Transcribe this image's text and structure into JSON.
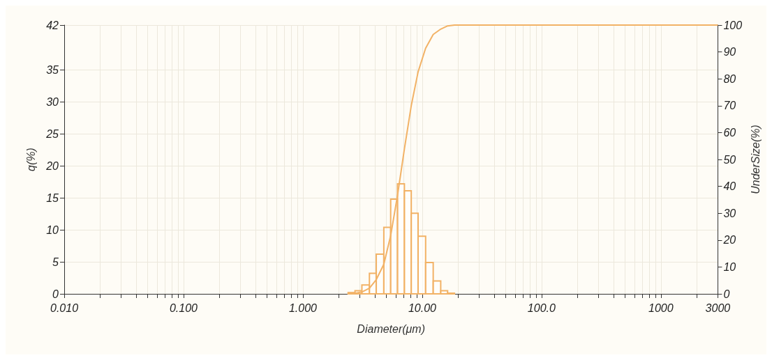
{
  "chart_data": {
    "type": "histogram",
    "xlabel": "Diameter(μm)",
    "ylabel": "q(%)",
    "y2label": "UnderSize(%)",
    "log": "x",
    "grid": true,
    "xlim": [
      0.01,
      3000
    ],
    "xticks": [
      {
        "value": 0.01,
        "label": "0.010"
      },
      {
        "value": 0.02,
        "label": null
      },
      {
        "value": 0.03,
        "label": null
      },
      {
        "value": 0.04,
        "label": null
      },
      {
        "value": 0.05,
        "label": null
      },
      {
        "value": 0.06,
        "label": null
      },
      {
        "value": 0.07,
        "label": null
      },
      {
        "value": 0.08,
        "label": null
      },
      {
        "value": 0.09,
        "label": null
      },
      {
        "value": 0.1,
        "label": "0.100"
      },
      {
        "value": 0.2,
        "label": null
      },
      {
        "value": 0.3,
        "label": null
      },
      {
        "value": 0.4,
        "label": null
      },
      {
        "value": 0.5,
        "label": null
      },
      {
        "value": 0.6,
        "label": null
      },
      {
        "value": 0.7,
        "label": null
      },
      {
        "value": 0.8,
        "label": null
      },
      {
        "value": 0.9,
        "label": null
      },
      {
        "value": 1,
        "label": "1.000"
      },
      {
        "value": 2,
        "label": null
      },
      {
        "value": 3,
        "label": null
      },
      {
        "value": 4,
        "label": null
      },
      {
        "value": 5,
        "label": null
      },
      {
        "value": 6,
        "label": null
      },
      {
        "value": 7,
        "label": null
      },
      {
        "value": 8,
        "label": null
      },
      {
        "value": 9,
        "label": null
      },
      {
        "value": 10,
        "label": "10.00"
      },
      {
        "value": 20,
        "label": null
      },
      {
        "value": 30,
        "label": null
      },
      {
        "value": 40,
        "label": null
      },
      {
        "value": 50,
        "label": null
      },
      {
        "value": 60,
        "label": null
      },
      {
        "value": 70,
        "label": null
      },
      {
        "value": 80,
        "label": null
      },
      {
        "value": 90,
        "label": null
      },
      {
        "value": 100,
        "label": "100.0"
      },
      {
        "value": 200,
        "label": null
      },
      {
        "value": 300,
        "label": null
      },
      {
        "value": 400,
        "label": null
      },
      {
        "value": 500,
        "label": null
      },
      {
        "value": 600,
        "label": null
      },
      {
        "value": 700,
        "label": null
      },
      {
        "value": 800,
        "label": null
      },
      {
        "value": 900,
        "label": null
      },
      {
        "value": 1000,
        "label": "1000"
      },
      {
        "value": 2000,
        "label": null
      },
      {
        "value": 3000,
        "label": "3000"
      }
    ],
    "ylim": [
      0,
      42
    ],
    "yticks": [
      0,
      5,
      10,
      15,
      20,
      25,
      30,
      35,
      42
    ],
    "y2lim": [
      0,
      100
    ],
    "y2ticks": [
      0,
      10,
      20,
      30,
      40,
      50,
      60,
      70,
      80,
      90,
      100
    ],
    "series": [
      {
        "color": "#f2b266",
        "bins": [
          2.394,
          2.734,
          3.122,
          3.61,
          4.12,
          4.767,
          5.44,
          6.211,
          7.09,
          8.091,
          9.237,
          10.68,
          12.36,
          14.29,
          16.32,
          18.63
        ],
        "values": [
          0.2,
          0.5,
          1.4,
          3.2,
          6.2,
          10.4,
          14.8,
          17.2,
          16.1,
          12.6,
          9.0,
          4.9,
          2.0,
          0.5,
          0.1
        ]
      },
      {
        "type": "line",
        "axis": "y2",
        "color": "#f2b266",
        "x": [
          2.394,
          2.734,
          3.122,
          3.61,
          4.12,
          4.767,
          5.44,
          6.211,
          7.09,
          8.091,
          9.237,
          10.68,
          12.36,
          14.29,
          16.32,
          18.63,
          3000
        ],
        "values": [
          0,
          0.2,
          0.7,
          2.1,
          5.3,
          11,
          21.7,
          36.7,
          53.9,
          70,
          82.6,
          91.4,
          96.5,
          98.5,
          99.7,
          100,
          100
        ]
      }
    ]
  }
}
